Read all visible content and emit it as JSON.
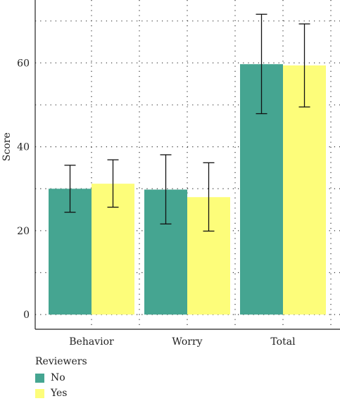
{
  "chart_data": {
    "type": "bar",
    "title": "",
    "xlabel": "",
    "ylabel": "Score",
    "ylim": [
      -3.5,
      75
    ],
    "yticks": [
      0,
      20,
      40,
      60
    ],
    "grid": true,
    "legend_position": "bottom-left",
    "categories": [
      "Behavior",
      "Worry",
      "Total"
    ],
    "legend_title": "Reviewers",
    "series": [
      {
        "name": "No",
        "color": "#45a591",
        "values": [
          30,
          29.8,
          59.7
        ],
        "error_low": [
          24.4,
          21.6,
          47.9
        ],
        "error_high": [
          35.6,
          38.1,
          71.6
        ]
      },
      {
        "name": "Yes",
        "color": "#fdfd7a",
        "values": [
          31.2,
          28.0,
          59.4
        ],
        "error_low": [
          25.6,
          19.9,
          49.5
        ],
        "error_high": [
          36.9,
          36.2,
          69.3
        ]
      }
    ]
  }
}
